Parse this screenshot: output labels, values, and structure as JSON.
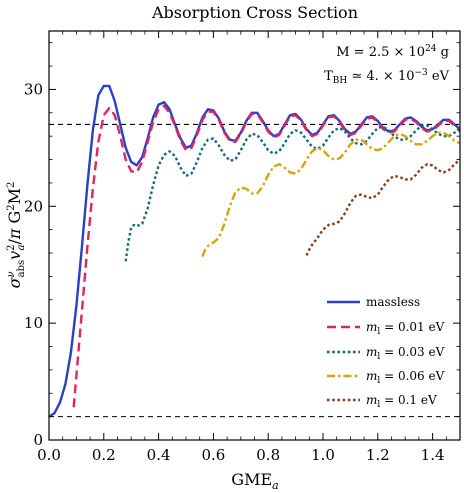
{
  "chart_data": {
    "type": "line",
    "title": "Absorption Cross Section",
    "xlabel": "GME_a",
    "ylabel": "σ^ν_abs v_a^2/π G^2M^2",
    "xlim": [
      0,
      1.5
    ],
    "ylim": [
      0,
      35
    ],
    "xticks": [
      0.0,
      0.2,
      0.4,
      0.6,
      0.8,
      1.0,
      1.2,
      1.4
    ],
    "xtick_labels": [
      "0.0",
      "0.2",
      "0.4",
      "0.6",
      "0.8",
      "1.0",
      "1.2",
      "1.4"
    ],
    "yticks": [
      0,
      10,
      20,
      30
    ],
    "ytick_labels": [
      "0",
      "10",
      "20",
      "30"
    ],
    "grid": false,
    "legend_position": "bottom-right",
    "annotations": [
      {
        "text": "M = 2.5 × 10^24 g"
      },
      {
        "text": "T_BH ≃ 4. × 10^-3 eV"
      }
    ],
    "reference_lines": [
      {
        "y": 27.0,
        "style": "dashed"
      },
      {
        "y": 2.0,
        "style": "dashed"
      }
    ],
    "series": [
      {
        "name": "massless",
        "color": "#2a3fc8",
        "dash": "solid",
        "x": [
          0.0,
          0.02,
          0.04,
          0.06,
          0.08,
          0.1,
          0.12,
          0.14,
          0.16,
          0.18,
          0.2,
          0.22,
          0.24,
          0.26,
          0.28,
          0.3,
          0.32,
          0.34,
          0.36,
          0.38,
          0.4,
          0.42,
          0.44,
          0.46,
          0.48,
          0.5,
          0.52,
          0.54,
          0.56,
          0.58,
          0.6,
          0.62,
          0.64,
          0.66,
          0.68,
          0.7,
          0.72,
          0.74,
          0.76,
          0.78,
          0.8,
          0.82,
          0.84,
          0.86,
          0.88,
          0.9,
          0.92,
          0.94,
          0.96,
          0.98,
          1.0,
          1.02,
          1.04,
          1.06,
          1.08,
          1.1,
          1.12,
          1.14,
          1.16,
          1.18,
          1.2,
          1.22,
          1.24,
          1.26,
          1.28,
          1.3,
          1.32,
          1.34,
          1.36,
          1.38,
          1.4,
          1.42,
          1.44,
          1.46,
          1.48,
          1.5
        ],
        "y": [
          2.0,
          2.3,
          3.2,
          4.8,
          7.5,
          11.5,
          16.5,
          21.8,
          26.5,
          29.5,
          30.3,
          30.3,
          29.0,
          27.0,
          25.0,
          23.8,
          23.5,
          24.2,
          25.8,
          27.6,
          28.7,
          28.9,
          28.3,
          27.0,
          25.8,
          25.0,
          25.2,
          26.3,
          27.6,
          28.3,
          28.2,
          27.5,
          26.4,
          25.7,
          25.6,
          26.3,
          27.3,
          28.0,
          28.0,
          27.3,
          26.5,
          26.0,
          26.2,
          27.0,
          27.8,
          27.9,
          27.4,
          26.6,
          26.1,
          26.3,
          27.0,
          27.7,
          27.8,
          27.3,
          26.6,
          26.2,
          26.4,
          27.0,
          27.6,
          27.7,
          27.3,
          26.7,
          26.4,
          26.5,
          27.0,
          27.5,
          27.6,
          27.3,
          26.8,
          26.5,
          26.6,
          27.0,
          27.4,
          27.4,
          27.0,
          26.6
        ]
      },
      {
        "name": "m_l = 0.01 eV",
        "color": "#e0245e",
        "dash": "dashed",
        "x": [
          0.09,
          0.1,
          0.12,
          0.14,
          0.16,
          0.18,
          0.2,
          0.22,
          0.24,
          0.26,
          0.28,
          0.3,
          0.32,
          0.34,
          0.36,
          0.38,
          0.4,
          0.42,
          0.44,
          0.46,
          0.48,
          0.5,
          0.52,
          0.54,
          0.56,
          0.58,
          0.6,
          0.62,
          0.64,
          0.66,
          0.68,
          0.7,
          0.72,
          0.74,
          0.76,
          0.78,
          0.8,
          0.82,
          0.84,
          0.86,
          0.88,
          0.9,
          0.92,
          0.94,
          0.96,
          0.98,
          1.0,
          1.02,
          1.04,
          1.06,
          1.08,
          1.1,
          1.12,
          1.14,
          1.16,
          1.18,
          1.2,
          1.22,
          1.24,
          1.26,
          1.28,
          1.3,
          1.32,
          1.34,
          1.36,
          1.38,
          1.4,
          1.42,
          1.44,
          1.46,
          1.48,
          1.5
        ],
        "y": [
          2.8,
          5.5,
          11.0,
          16.5,
          21.5,
          25.5,
          27.8,
          28.4,
          27.8,
          26.0,
          24.0,
          23.0,
          22.9,
          23.8,
          25.5,
          27.2,
          28.3,
          28.6,
          28.0,
          26.9,
          25.6,
          24.8,
          25.0,
          26.1,
          27.4,
          28.1,
          28.1,
          27.4,
          26.3,
          25.6,
          25.5,
          26.2,
          27.2,
          27.9,
          27.9,
          27.2,
          26.4,
          25.9,
          26.1,
          26.9,
          27.7,
          27.8,
          27.3,
          26.5,
          26.0,
          26.2,
          26.9,
          27.6,
          27.7,
          27.2,
          26.5,
          26.1,
          26.3,
          26.9,
          27.5,
          27.6,
          27.2,
          26.6,
          26.3,
          26.4,
          26.9,
          27.4,
          27.5,
          27.2,
          26.7,
          26.4,
          26.5,
          26.9,
          27.3,
          27.3,
          26.9,
          26.4
        ]
      },
      {
        "name": "m_l = 0.03 eV",
        "color": "#136a7a",
        "dash": "dotted",
        "x": [
          0.28,
          0.29,
          0.3,
          0.31,
          0.32,
          0.34,
          0.36,
          0.38,
          0.4,
          0.42,
          0.44,
          0.46,
          0.48,
          0.5,
          0.52,
          0.54,
          0.56,
          0.58,
          0.6,
          0.62,
          0.64,
          0.66,
          0.68,
          0.7,
          0.72,
          0.74,
          0.76,
          0.78,
          0.8,
          0.82,
          0.84,
          0.86,
          0.88,
          0.9,
          0.92,
          0.94,
          0.96,
          0.98,
          1.0,
          1.02,
          1.04,
          1.06,
          1.08,
          1.1,
          1.12,
          1.14,
          1.16,
          1.18,
          1.2,
          1.22,
          1.24,
          1.26,
          1.28,
          1.3,
          1.32,
          1.34,
          1.36,
          1.38,
          1.4,
          1.42,
          1.44,
          1.46,
          1.48,
          1.5
        ],
        "y": [
          15.3,
          17.0,
          18.2,
          18.4,
          18.3,
          18.5,
          19.8,
          21.8,
          23.5,
          24.4,
          24.7,
          24.3,
          23.3,
          22.6,
          22.8,
          23.8,
          25.0,
          25.7,
          25.8,
          25.2,
          24.4,
          23.9,
          24.0,
          24.8,
          25.7,
          26.2,
          26.1,
          25.5,
          24.8,
          24.5,
          24.7,
          25.4,
          26.2,
          26.5,
          26.3,
          25.7,
          25.1,
          24.9,
          25.2,
          25.9,
          26.5,
          26.7,
          26.4,
          25.8,
          25.4,
          25.3,
          25.6,
          26.2,
          26.7,
          26.8,
          26.5,
          26.0,
          25.7,
          25.7,
          26.0,
          26.5,
          26.9,
          26.9,
          26.6,
          26.2,
          26.0,
          26.0,
          26.3,
          26.6
        ]
      },
      {
        "name": "m_l = 0.06 eV",
        "color": "#d9a20a",
        "dash": "dashdot",
        "x": [
          0.56,
          0.57,
          0.58,
          0.59,
          0.6,
          0.62,
          0.64,
          0.66,
          0.68,
          0.7,
          0.72,
          0.74,
          0.76,
          0.78,
          0.8,
          0.82,
          0.84,
          0.86,
          0.88,
          0.9,
          0.92,
          0.94,
          0.96,
          0.98,
          1.0,
          1.02,
          1.04,
          1.06,
          1.08,
          1.1,
          1.12,
          1.14,
          1.16,
          1.18,
          1.2,
          1.22,
          1.24,
          1.26,
          1.28,
          1.3,
          1.32,
          1.34,
          1.36,
          1.38,
          1.4,
          1.42,
          1.44,
          1.46,
          1.48,
          1.5
        ],
        "y": [
          15.7,
          16.3,
          16.6,
          16.8,
          16.9,
          17.3,
          18.5,
          20.0,
          21.2,
          21.6,
          21.5,
          21.1,
          21.1,
          21.7,
          22.7,
          23.4,
          23.6,
          23.3,
          22.9,
          22.8,
          23.2,
          24.0,
          24.7,
          25.0,
          24.8,
          24.3,
          24.0,
          24.1,
          24.6,
          25.3,
          25.7,
          25.7,
          25.3,
          24.9,
          24.8,
          25.0,
          25.5,
          26.0,
          26.2,
          26.0,
          25.6,
          25.3,
          25.3,
          25.6,
          26.0,
          26.3,
          26.3,
          26.0,
          25.6,
          25.4
        ]
      },
      {
        "name": "m_l = 0.1 eV",
        "color": "#8b3a1a",
        "dash": "dotted",
        "x": [
          0.94,
          0.95,
          0.96,
          0.98,
          1.0,
          1.02,
          1.04,
          1.06,
          1.08,
          1.1,
          1.12,
          1.14,
          1.16,
          1.18,
          1.2,
          1.22,
          1.24,
          1.26,
          1.28,
          1.3,
          1.32,
          1.34,
          1.36,
          1.38,
          1.4,
          1.42,
          1.44,
          1.46,
          1.48,
          1.5
        ],
        "y": [
          15.8,
          16.3,
          16.7,
          17.3,
          18.0,
          18.4,
          18.5,
          18.7,
          19.4,
          20.3,
          20.9,
          21.0,
          20.8,
          20.7,
          21.0,
          21.7,
          22.3,
          22.6,
          22.5,
          22.3,
          22.3,
          22.7,
          23.3,
          23.6,
          23.5,
          23.1,
          22.9,
          23.1,
          23.6,
          24.0
        ]
      }
    ]
  }
}
